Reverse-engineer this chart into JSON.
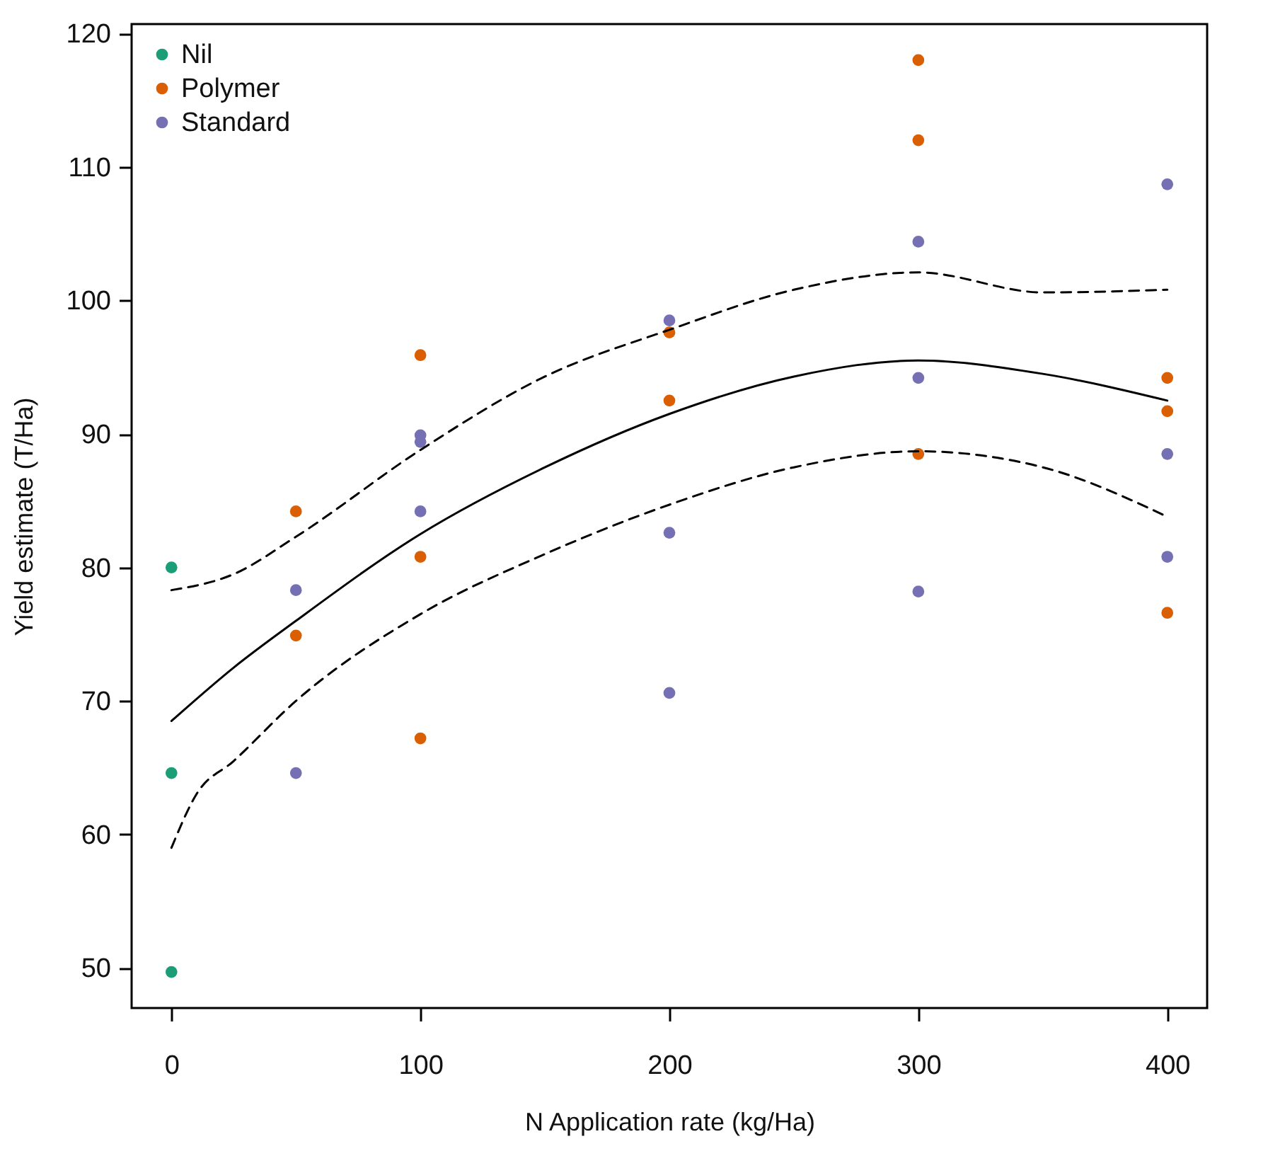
{
  "chart_data": {
    "type": "scatter",
    "xlabel": "N Application rate (kg/Ha)",
    "ylabel": "Yield estimate (T/Ha)",
    "xlim": [
      -16,
      416
    ],
    "ylim": [
      47,
      120.7
    ],
    "xticks": [
      0,
      100,
      200,
      300,
      400
    ],
    "yticks": [
      50,
      60,
      70,
      80,
      90,
      100,
      110,
      120
    ],
    "legend": "top left",
    "marker": "circle",
    "series": [
      {
        "name": "Nil",
        "color": "#1b9e77",
        "x": [
          0,
          0,
          0
        ],
        "values": [
          80.0,
          64.6,
          49.7
        ]
      },
      {
        "name": "Polymer",
        "color": "#d95f02",
        "x": [
          50,
          50,
          100,
          100,
          100,
          200,
          200,
          300,
          300,
          300,
          400,
          400,
          400
        ],
        "values": [
          84.2,
          74.9,
          95.9,
          80.8,
          67.2,
          97.6,
          92.5,
          118.0,
          112.0,
          88.5,
          94.2,
          91.7,
          76.6
        ]
      },
      {
        "name": "Standard",
        "color": "#7570b3",
        "x": [
          50,
          50,
          100,
          100,
          100,
          200,
          200,
          200,
          300,
          300,
          300,
          400,
          400,
          400
        ],
        "values": [
          78.3,
          64.6,
          89.9,
          89.4,
          84.2,
          98.5,
          82.6,
          70.6,
          104.4,
          94.2,
          78.2,
          108.7,
          88.5,
          80.8
        ]
      },
      {
        "type": "line",
        "marker": "none",
        "line_style": "solid",
        "color": "#000000",
        "x": [
          0,
          25,
          50,
          100,
          150,
          200,
          250,
          300,
          350,
          400
        ],
        "values": [
          68.5,
          72.5,
          76,
          82.5,
          87.5,
          91.5,
          94.3,
          95.5,
          94.5,
          92.5
        ]
      },
      {
        "type": "line",
        "marker": "none",
        "line_style": "dashed",
        "color": "#000000",
        "x": [
          0,
          25,
          50,
          100,
          150,
          200,
          250,
          300,
          350,
          400
        ],
        "values": [
          78.3,
          79.5,
          82.3,
          88.8,
          94.3,
          97.8,
          100.8,
          102.1,
          100.6,
          100.8
        ]
      },
      {
        "type": "line",
        "marker": "none",
        "line_style": "dashed",
        "color": "#000000",
        "x": [
          0,
          10,
          25,
          50,
          100,
          150,
          200,
          250,
          300,
          350,
          400
        ],
        "values": [
          59,
          63,
          65.5,
          70,
          76.5,
          81,
          84.7,
          87.5,
          88.7,
          87.5,
          83.8
        ]
      }
    ]
  }
}
